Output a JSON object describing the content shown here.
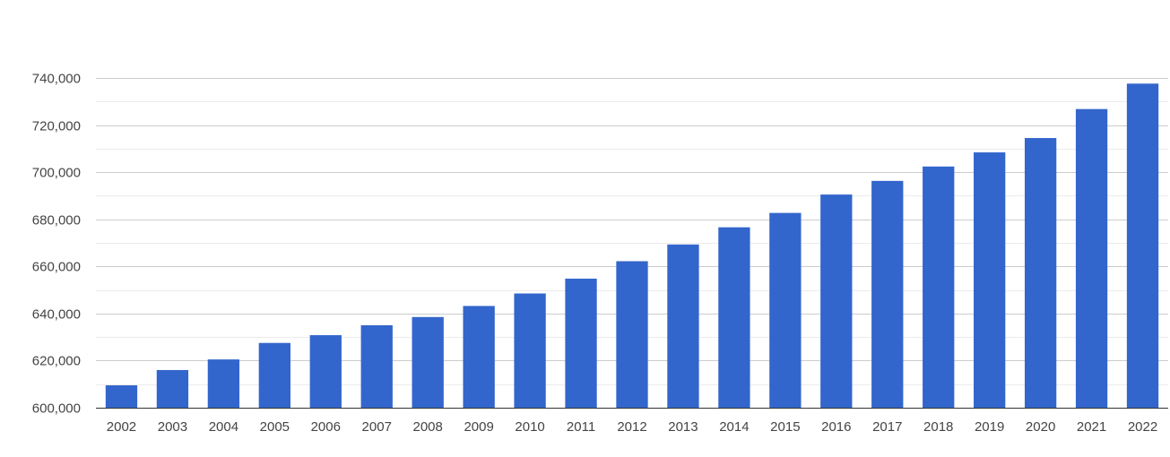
{
  "chart_data": {
    "type": "bar",
    "title": "",
    "xlabel": "",
    "ylabel": "",
    "categories": [
      "2002",
      "2003",
      "2004",
      "2005",
      "2006",
      "2007",
      "2008",
      "2009",
      "2010",
      "2011",
      "2012",
      "2013",
      "2014",
      "2015",
      "2016",
      "2017",
      "2018",
      "2019",
      "2020",
      "2021",
      "2022"
    ],
    "values": [
      609500,
      616000,
      620500,
      627500,
      630800,
      635000,
      638500,
      643200,
      648500,
      654800,
      662200,
      669300,
      676600,
      682700,
      690500,
      696300,
      702400,
      708400,
      714500,
      726800,
      737600
    ],
    "ylim": [
      600000,
      740000
    ],
    "yticks": [
      600000,
      620000,
      640000,
      660000,
      680000,
      700000,
      720000,
      740000
    ],
    "ytick_labels": [
      "600,000",
      "620,000",
      "640,000",
      "660,000",
      "680,000",
      "700,000",
      "720,000",
      "740,000"
    ],
    "grid": true,
    "legend": "none",
    "colors": {
      "bar": "#3366cc",
      "major_grid": "#cccccc",
      "minor_grid": "#ebebeb",
      "baseline": "#333333",
      "tick_text": "#444444"
    }
  }
}
